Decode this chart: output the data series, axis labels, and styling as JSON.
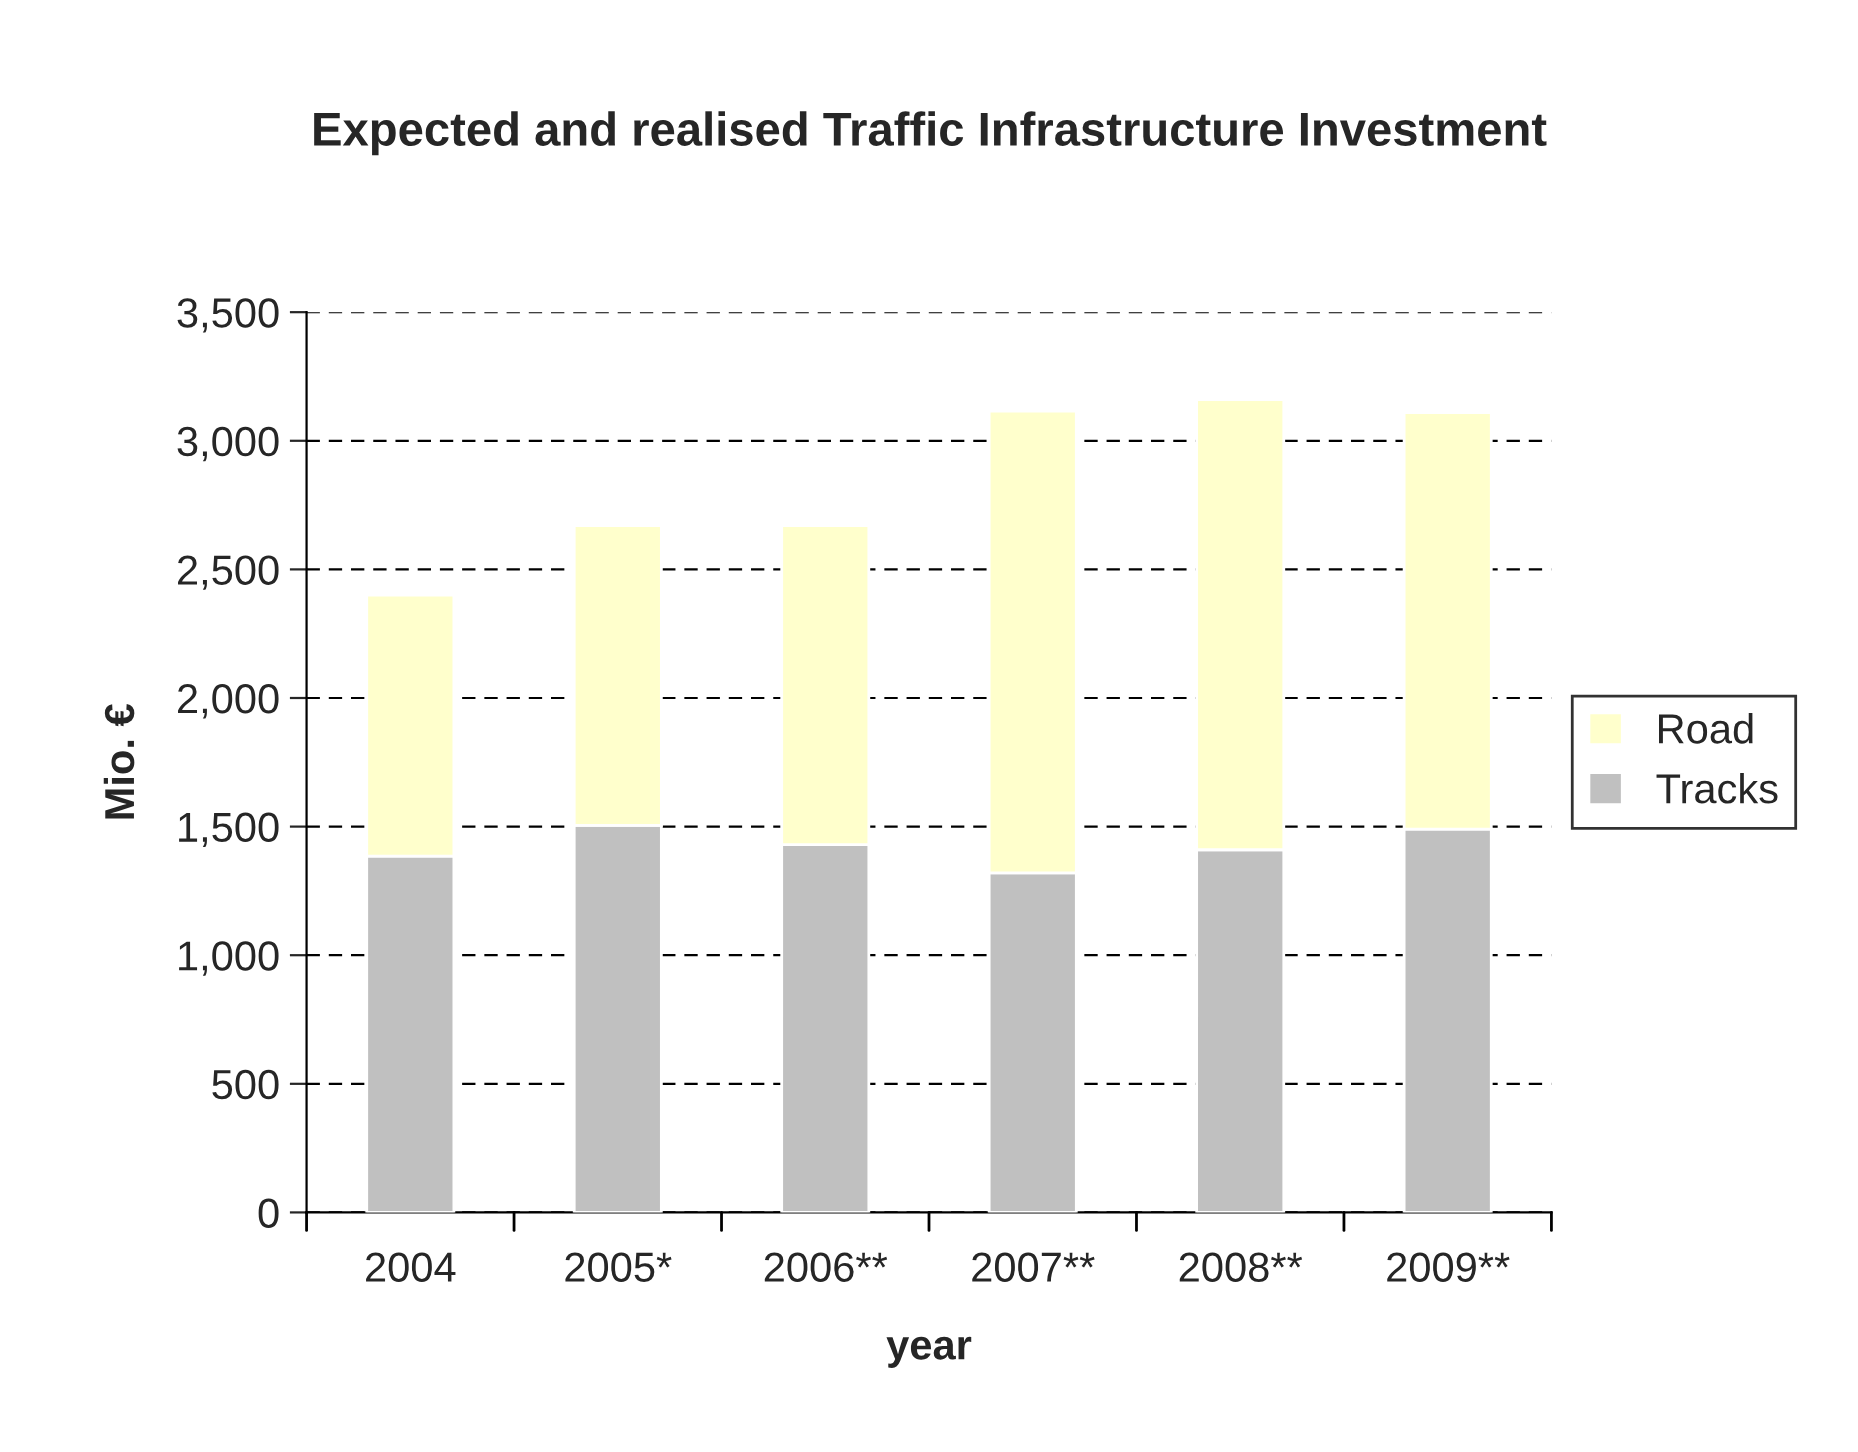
{
  "chart_data": {
    "type": "bar",
    "title": "Expected and realised Traffic Infrastructure Investment",
    "xlabel": "year",
    "ylabel": "Mio. €",
    "categories": [
      "2004",
      "2005*",
      "2006**",
      "2007**",
      "2008**",
      "2009**"
    ],
    "stacked": true,
    "series": [
      {
        "name": "Tracks",
        "color": "#c0c0c0",
        "values": [
          1385,
          1505,
          1430,
          1320,
          1410,
          1490
        ]
      },
      {
        "name": "Road",
        "color": "#ffffcc",
        "values": [
          1015,
          1165,
          1240,
          1795,
          1750,
          1620
        ]
      }
    ],
    "ylim": [
      0,
      3500
    ],
    "yticks": [
      {
        "value": 0,
        "label": "0"
      },
      {
        "value": 500,
        "label": "500"
      },
      {
        "value": 1000,
        "label": "1,000"
      },
      {
        "value": 1500,
        "label": "1,500"
      },
      {
        "value": 2000,
        "label": "2,000"
      },
      {
        "value": 2500,
        "label": "2,500"
      },
      {
        "value": 3000,
        "label": "3,000"
      },
      {
        "value": 3500,
        "label": "3,500"
      }
    ],
    "grid": "y",
    "legend": "right"
  }
}
